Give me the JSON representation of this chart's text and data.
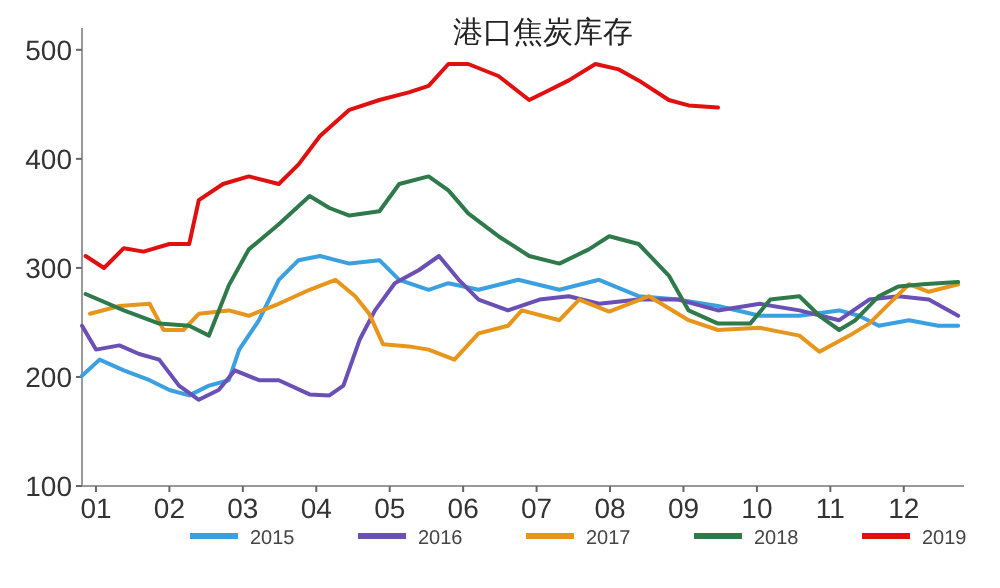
{
  "chart_data": {
    "type": "line",
    "title": "港口焦炭库存",
    "xlim": [
      0.81,
      12.82
    ],
    "xticks": [
      {
        "value": 1,
        "label": "01"
      },
      {
        "value": 2,
        "label": "02"
      },
      {
        "value": 3,
        "label": "03"
      },
      {
        "value": 4,
        "label": "04"
      },
      {
        "value": 5,
        "label": "05"
      },
      {
        "value": 6,
        "label": "06"
      },
      {
        "value": 7,
        "label": "07"
      },
      {
        "value": 8,
        "label": "08"
      },
      {
        "value": 9,
        "label": "09"
      },
      {
        "value": 10,
        "label": "10"
      },
      {
        "value": 11,
        "label": "11"
      },
      {
        "value": 12,
        "label": "12"
      }
    ],
    "ylim": [
      100,
      520
    ],
    "yticks": [
      100,
      200,
      300,
      400,
      500
    ],
    "grid": false,
    "legend": "bottom",
    "marker": "none",
    "line_style": "solid",
    "series": [
      {
        "name": "2015",
        "color": "#3aa0e0",
        "x": [
          0.81,
          1.05,
          1.38,
          1.73,
          2.0,
          2.27,
          2.54,
          2.81,
          2.95,
          3.22,
          3.49,
          3.76,
          4.05,
          4.45,
          4.86,
          5.13,
          5.53,
          5.8,
          6.21,
          6.75,
          7.31,
          7.85,
          8.39,
          8.93,
          9.47,
          10.04,
          10.58,
          11.12,
          11.39,
          11.66,
          12.07,
          12.47,
          12.74
        ],
        "values": [
          201,
          216,
          206,
          197,
          188,
          183,
          192,
          197,
          225,
          252,
          289,
          307,
          311,
          304,
          307,
          289,
          280,
          286,
          280,
          289,
          280,
          289,
          274,
          271,
          265,
          256,
          256,
          261,
          256,
          247,
          252,
          247,
          247
        ]
      },
      {
        "name": "2016",
        "color": "#6a4fb5",
        "x": [
          0.81,
          1.0,
          1.32,
          1.59,
          1.86,
          2.13,
          2.4,
          2.67,
          2.89,
          3.22,
          3.49,
          3.91,
          4.18,
          4.37,
          4.59,
          4.8,
          5.07,
          5.4,
          5.67,
          5.94,
          6.21,
          6.61,
          7.04,
          7.44,
          7.85,
          8.39,
          8.93,
          9.47,
          10.04,
          10.58,
          11.12,
          11.53,
          11.93,
          12.34,
          12.74
        ],
        "values": [
          247,
          225,
          229,
          221,
          216,
          192,
          179,
          188,
          206,
          197,
          197,
          184,
          183,
          192,
          234,
          261,
          286,
          298,
          311,
          289,
          271,
          261,
          271,
          274,
          267,
          271,
          271,
          261,
          267,
          261,
          252,
          271,
          274,
          271,
          256
        ]
      },
      {
        "name": "2017",
        "color": "#e8951c",
        "x": [
          0.92,
          1.32,
          1.73,
          1.92,
          2.19,
          2.4,
          2.81,
          3.08,
          3.49,
          3.91,
          4.26,
          4.53,
          4.72,
          4.91,
          5.26,
          5.53,
          5.88,
          6.21,
          6.61,
          6.8,
          7.31,
          7.58,
          7.99,
          8.53,
          9.07,
          9.47,
          10.04,
          10.58,
          10.85,
          11.26,
          11.53,
          11.8,
          12.07,
          12.34,
          12.74
        ],
        "values": [
          258,
          265,
          267,
          243,
          243,
          258,
          261,
          256,
          267,
          280,
          289,
          274,
          258,
          230,
          228,
          225,
          216,
          240,
          247,
          261,
          252,
          271,
          260,
          274,
          252,
          243,
          245,
          238,
          223,
          238,
          249,
          267,
          285,
          278,
          285
        ]
      },
      {
        "name": "2018",
        "color": "#2e7a4a",
        "x": [
          0.86,
          1.38,
          1.86,
          2.27,
          2.54,
          2.81,
          3.08,
          3.49,
          3.91,
          4.18,
          4.45,
          4.86,
          5.13,
          5.53,
          5.8,
          6.07,
          6.48,
          6.9,
          7.31,
          7.71,
          7.99,
          8.39,
          8.8,
          9.07,
          9.47,
          9.91,
          10.18,
          10.58,
          10.85,
          11.12,
          11.34,
          11.66,
          11.93,
          12.26,
          12.74
        ],
        "values": [
          276,
          261,
          249,
          247,
          238,
          284,
          317,
          340,
          366,
          355,
          348,
          352,
          377,
          384,
          371,
          350,
          329,
          311,
          304,
          317,
          329,
          322,
          293,
          261,
          249,
          249,
          271,
          274,
          256,
          243,
          252,
          274,
          283,
          285,
          287
        ]
      },
      {
        "name": "2019",
        "color": "#e01010",
        "x": [
          0.86,
          1.11,
          1.38,
          1.65,
          2.0,
          2.27,
          2.4,
          2.73,
          3.08,
          3.49,
          3.76,
          4.05,
          4.45,
          4.86,
          5.26,
          5.53,
          5.8,
          6.07,
          6.48,
          6.9,
          7.17,
          7.44,
          7.8,
          8.12,
          8.39,
          8.8,
          9.07,
          9.47
        ],
        "values": [
          311,
          300,
          318,
          315,
          322,
          322,
          362,
          377,
          384,
          377,
          395,
          421,
          445,
          454,
          461,
          467,
          487,
          487,
          476,
          454,
          463,
          472,
          487,
          482,
          472,
          454,
          449,
          447
        ]
      }
    ]
  }
}
